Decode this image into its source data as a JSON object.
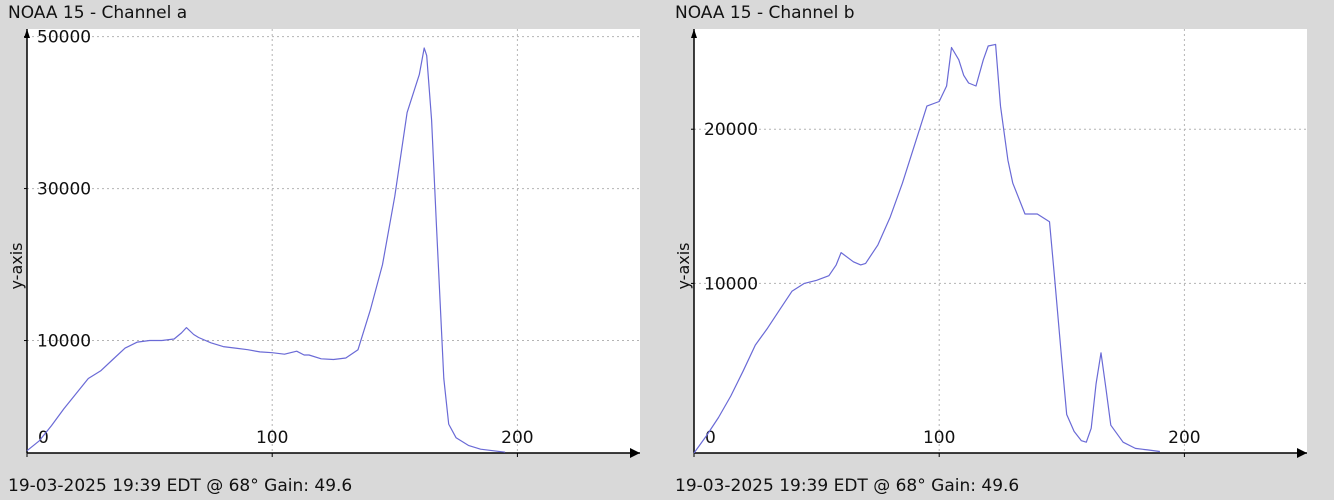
{
  "footer_text": "19-03-2025 19:39 EDT @ 68° Gain: 49.6",
  "colors": {
    "background": "#d9d9d9",
    "plot": "#ffffff",
    "line": "#6a6ad6",
    "grid": "#b4b4b4",
    "axis": "#000000"
  },
  "chart_data": [
    {
      "type": "line",
      "title": "NOAA 15 - Channel a",
      "ylabel": "y-axis",
      "xlim": [
        0,
        250
      ],
      "ylim": [
        -4800,
        51000
      ],
      "x_ticks": [
        0,
        100,
        200
      ],
      "y_ticks": [
        10000,
        30000,
        50000
      ],
      "grid": true,
      "x": [
        0,
        5,
        10,
        15,
        20,
        25,
        30,
        35,
        40,
        45,
        50,
        55,
        60,
        63,
        65,
        68,
        70,
        75,
        80,
        85,
        90,
        95,
        100,
        105,
        110,
        113,
        115,
        120,
        125,
        130,
        135,
        140,
        145,
        150,
        155,
        158,
        160,
        162,
        163,
        165,
        167,
        170,
        172,
        175,
        180,
        185,
        190,
        195
      ],
      "y": [
        -4500,
        -3200,
        -1200,
        1000,
        3000,
        5000,
        6000,
        7500,
        9000,
        9800,
        10000,
        10000,
        10200,
        11000,
        11700,
        10800,
        10400,
        9700,
        9200,
        9000,
        8800,
        8500,
        8400,
        8200,
        8600,
        8100,
        8100,
        7600,
        7500,
        7700,
        8800,
        14000,
        20000,
        29000,
        40000,
        43000,
        45000,
        48500,
        47500,
        39000,
        25000,
        5000,
        -1000,
        -2800,
        -3800,
        -4300,
        -4500,
        -4700
      ]
    },
    {
      "type": "line",
      "title": "NOAA 15 - Channel b",
      "ylabel": "y-axis",
      "xlim": [
        0,
        250
      ],
      "ylim": [
        -1000,
        26500
      ],
      "x_ticks": [
        0,
        100,
        200
      ],
      "y_ticks": [
        10000,
        20000
      ],
      "grid": true,
      "x": [
        0,
        5,
        10,
        15,
        20,
        25,
        30,
        35,
        40,
        45,
        50,
        55,
        58,
        60,
        65,
        68,
        70,
        75,
        80,
        85,
        90,
        95,
        100,
        103,
        105,
        108,
        110,
        112,
        115,
        118,
        120,
        123,
        125,
        128,
        130,
        135,
        140,
        145,
        147,
        150,
        152,
        155,
        158,
        160,
        162,
        164,
        166,
        168,
        170,
        175,
        180,
        185,
        190
      ],
      "y": [
        -1000,
        100,
        1300,
        2700,
        4300,
        6000,
        7100,
        8300,
        9500,
        10000,
        10200,
        10500,
        11200,
        12000,
        11400,
        11200,
        11300,
        12500,
        14300,
        16500,
        19000,
        21500,
        21800,
        22800,
        25300,
        24500,
        23500,
        23000,
        22800,
        24500,
        25400,
        25500,
        21500,
        18000,
        16500,
        14500,
        14500,
        14000,
        10500,
        5000,
        1500,
        400,
        -200,
        -300,
        600,
        3500,
        5500,
        3200,
        800,
        -300,
        -700,
        -800,
        -900
      ]
    }
  ]
}
